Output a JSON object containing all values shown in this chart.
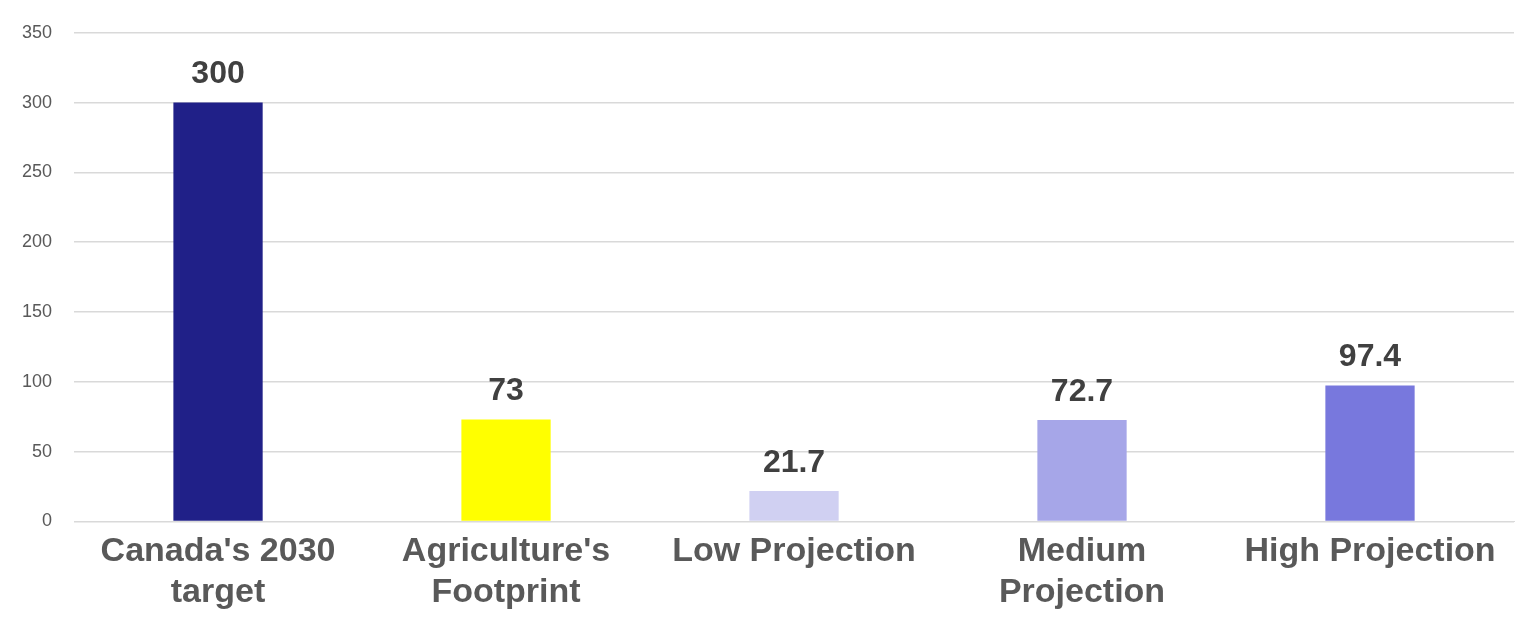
{
  "chart_data": {
    "type": "bar",
    "categories": [
      "Canada's 2030 target",
      "Agriculture's Footprint",
      "Low Projection",
      "Medium Projection",
      "High Projection"
    ],
    "values": [
      300,
      73,
      21.7,
      72.7,
      97.4
    ],
    "colors": [
      "#202088",
      "#ffff00",
      "#d0d0f2",
      "#a6a6e8",
      "#7878dd"
    ],
    "ylim": [
      0,
      350
    ],
    "yticks": [
      0,
      50,
      100,
      150,
      200,
      250,
      300,
      350
    ],
    "grid": "y",
    "data_labels": true,
    "legend": false
  }
}
